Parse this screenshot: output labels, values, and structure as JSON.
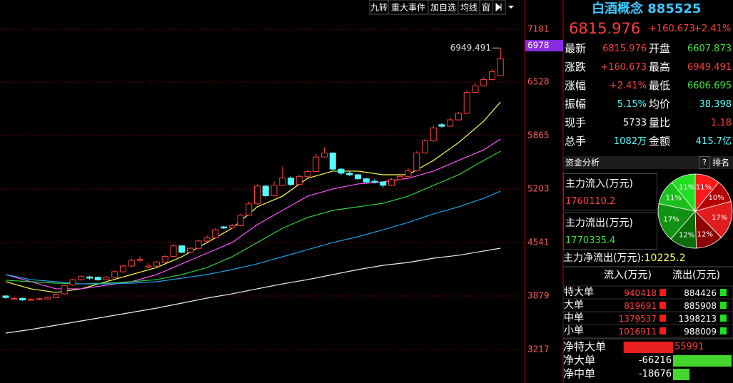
{
  "toolbar": {
    "buttons": [
      "九转",
      "重大事件",
      "加自选",
      "均线",
      "窗"
    ]
  },
  "chart_data": {
    "type": "candlestick",
    "up_color": "#ff3c3c",
    "down_color": "#54ffff",
    "grid": true,
    "ylim": [
      2802,
      7367
    ],
    "yticks": [
      7181,
      6528,
      5865,
      5203,
      4541,
      3879,
      3217
    ],
    "cursor_value": 6978,
    "open": [
      3880,
      3845,
      3850,
      3828,
      3835,
      3842,
      3858,
      3905,
      4015,
      4080,
      4115,
      4110,
      4082,
      4108,
      4178,
      4250,
      4322,
      4235,
      4250,
      4300,
      4370,
      4500,
      4420,
      4470,
      4560,
      4600,
      4735,
      4722,
      4750,
      4880,
      5020,
      5240,
      5120,
      5250,
      5340,
      5260,
      5360,
      5420,
      5600,
      5650,
      5450,
      5400,
      5380,
      5330,
      5300,
      5290,
      5250,
      5320,
      5360,
      5430,
      5650,
      5800,
      6000,
      5980,
      6060,
      6140,
      6400,
      6480,
      6560,
      6607.873
    ],
    "high": [
      3890,
      3870,
      3858,
      3852,
      3860,
      3870,
      3910,
      4020,
      4095,
      4140,
      4130,
      4120,
      4125,
      4195,
      4265,
      4340,
      4370,
      4290,
      4315,
      4385,
      4520,
      4510,
      4480,
      4575,
      4630,
      4720,
      4745,
      4770,
      4900,
      5050,
      5270,
      5250,
      5300,
      5480,
      5360,
      5380,
      5440,
      5640,
      5720,
      5660,
      5460,
      5420,
      5390,
      5340,
      5330,
      5300,
      5340,
      5400,
      5460,
      5670,
      5830,
      5990,
      6020,
      6090,
      6160,
      6430,
      6510,
      6590,
      6690,
      6949.491
    ],
    "low": [
      3845,
      3835,
      3820,
      3818,
      3825,
      3835,
      3850,
      3900,
      4005,
      4070,
      4085,
      4070,
      4075,
      4100,
      4170,
      4240,
      4300,
      4225,
      4240,
      4290,
      4360,
      4410,
      4410,
      4460,
      4550,
      4590,
      4710,
      4715,
      4740,
      4870,
      5010,
      5100,
      5110,
      5240,
      5240,
      5250,
      5340,
      5410,
      5590,
      5430,
      5380,
      5360,
      5320,
      5280,
      5270,
      5220,
      5240,
      5310,
      5350,
      5420,
      5640,
      5790,
      5960,
      5970,
      6050,
      6130,
      6390,
      6470,
      6550,
      6606.695
    ],
    "close": [
      3860,
      3850,
      3830,
      3840,
      3845,
      3860,
      3900,
      4010,
      4080,
      4120,
      4100,
      4080,
      4110,
      4180,
      4250,
      4320,
      4330,
      4250,
      4300,
      4370,
      4500,
      4420,
      4470,
      4560,
      4600,
      4700,
      4720,
      4750,
      4880,
      5020,
      5240,
      5120,
      5250,
      5340,
      5260,
      5360,
      5420,
      5600,
      5650,
      5450,
      5400,
      5380,
      5330,
      5290,
      5290,
      5250,
      5320,
      5360,
      5430,
      5650,
      5800,
      5960,
      5980,
      6060,
      6140,
      6400,
      6480,
      6560,
      6655.303,
      6815.976
    ],
    "moving_averages": {
      "x": [
        0,
        3,
        6,
        9,
        12,
        15,
        18,
        21,
        24,
        27,
        30,
        33,
        36,
        39,
        42,
        45,
        48,
        51,
        54,
        57,
        59
      ],
      "series": [
        {
          "color": "#ffff54",
          "values": [
            4056,
            3968,
            3923,
            3968,
            4056,
            4144,
            4232,
            4365,
            4541,
            4718,
            4983,
            5115,
            5336,
            5425,
            5425,
            5380,
            5380,
            5557,
            5778,
            6043,
            6281
          ]
        },
        {
          "color": "#ff54ff",
          "values": [
            4144,
            4056,
            3968,
            3968,
            4012,
            4056,
            4144,
            4277,
            4409,
            4541,
            4762,
            4939,
            5115,
            5204,
            5266,
            5292,
            5336,
            5425,
            5557,
            5689,
            5822
          ]
        },
        {
          "color": "#2ecc40",
          "values": [
            4074,
            4056,
            4038,
            4029,
            4038,
            4056,
            4082,
            4144,
            4232,
            4365,
            4541,
            4718,
            4851,
            4939,
            4983,
            5027,
            5115,
            5248,
            5380,
            5557,
            5672
          ]
        },
        {
          "color": "#1ea0e6",
          "values": [
            4144,
            4082,
            4056,
            4029,
            4029,
            4038,
            4056,
            4100,
            4144,
            4206,
            4277,
            4365,
            4453,
            4541,
            4612,
            4700,
            4789,
            4895,
            4983,
            5089,
            5177
          ]
        },
        {
          "color": "#f0f0f0",
          "values": [
            3420,
            3464,
            3517,
            3570,
            3623,
            3676,
            3729,
            3791,
            3853,
            3906,
            3968,
            4029,
            4082,
            4144,
            4206,
            4259,
            4294,
            4347,
            4383,
            4436,
            4471
          ]
        }
      ]
    }
  },
  "quote": {
    "name": "白酒概念",
    "code": "885525",
    "price": "6815.976",
    "change": "+160.673",
    "change_pct": "+2.41%",
    "rows": [
      [
        "最新",
        "6815.976",
        "开盘",
        "6607.873"
      ],
      [
        "涨跌",
        "+160.673",
        "最高",
        "6949.491"
      ],
      [
        "涨幅",
        "+2.41%",
        "最低",
        "6606.695"
      ],
      [
        "振幅",
        "5.15%",
        "均价",
        "38.398"
      ],
      [
        "现手",
        "5733",
        "量比",
        "1.18"
      ],
      [
        "总手",
        "1082万",
        "金额",
        "415.7亿"
      ]
    ]
  },
  "fund_flow": {
    "title": "资金分析",
    "help": "?",
    "rank": "排名",
    "main_in_label": "主力流入(万元)",
    "main_in": "1760110.2",
    "main_out_label": "主力流出(万元)",
    "main_out": "1770335.4",
    "net_label": "主力净流出(万元):",
    "net": "10225.2",
    "pie": {
      "values": [
        11,
        10,
        17,
        12,
        12,
        17,
        11,
        11
      ],
      "value_labels": [
        "11%",
        "10%",
        "17%",
        "12%",
        "12%",
        "17%",
        "11%",
        "11%"
      ],
      "colors": [
        "#ff1a1a",
        "#b40000",
        "#e21c1c",
        "#8c0000",
        "#0a6e0a",
        "#129212",
        "#1cbf1c",
        "#22dd22"
      ]
    },
    "table": {
      "header": [
        "流入(万元)",
        "流出(万元)"
      ],
      "rows": [
        {
          "label": "特大单",
          "in": 940418,
          "out": 884426
        },
        {
          "label": "大单",
          "in": 819691,
          "out": 885908
        },
        {
          "label": "中单",
          "in": 1379537,
          "out": 1398213
        },
        {
          "label": "小单",
          "in": 1016911,
          "out": 988009
        }
      ]
    },
    "net_rows": [
      {
        "label": "净特大单",
        "value": 55991
      },
      {
        "label": "净大单",
        "value": -66216
      },
      {
        "label": "净中单",
        "value": -18676
      }
    ]
  }
}
